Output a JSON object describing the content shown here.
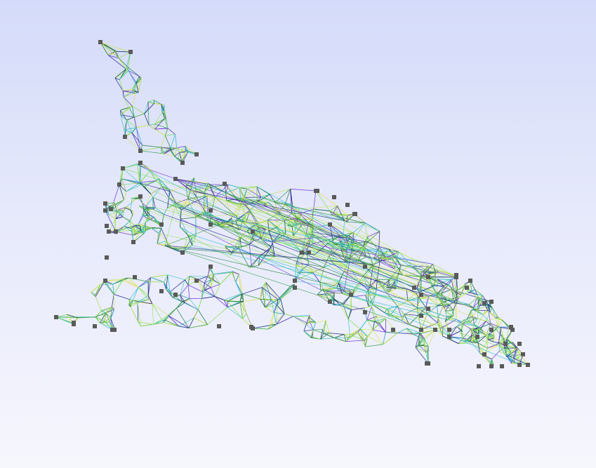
{
  "viewport": {
    "background_top": "#d4dbfa",
    "background_bottom": "#f6f6fd"
  },
  "model": {
    "render_mode": "wireframe",
    "vertex_color": "#5a5a5a",
    "edge_palette": [
      "#1a7a3a",
      "#2f9e44",
      "#3fc6c6",
      "#7be04a",
      "#c8e64a",
      "#6a2bd9",
      "#1c1c8c",
      "#22b8cf",
      "#9be15d",
      "#e0e04a"
    ]
  }
}
